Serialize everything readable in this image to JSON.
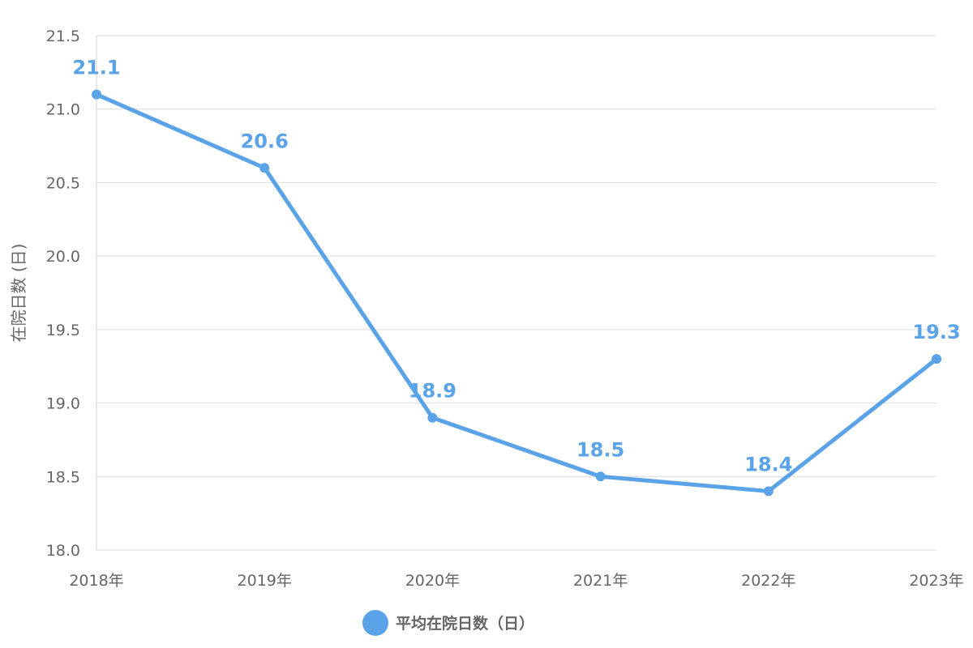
{
  "chart_data": {
    "type": "line",
    "categories": [
      "2018年",
      "2019年",
      "2020年",
      "2021年",
      "2022年",
      "2023年"
    ],
    "series": [
      {
        "name": "平均在院日数（日）",
        "values": [
          21.1,
          20.6,
          18.9,
          18.5,
          18.4,
          19.3
        ],
        "color": "#5BA3E8"
      }
    ],
    "data_labels": [
      "21.1",
      "20.6",
      "18.9",
      "18.5",
      "18.4",
      "19.3"
    ],
    "ylabel": "在院日数 (日)",
    "ylim": [
      18.0,
      21.5
    ],
    "yticks": [
      "21.5",
      "21.0",
      "20.5",
      "20.0",
      "19.5",
      "19.0",
      "18.5",
      "18.0"
    ],
    "grid": true,
    "legend_position": "bottom"
  }
}
